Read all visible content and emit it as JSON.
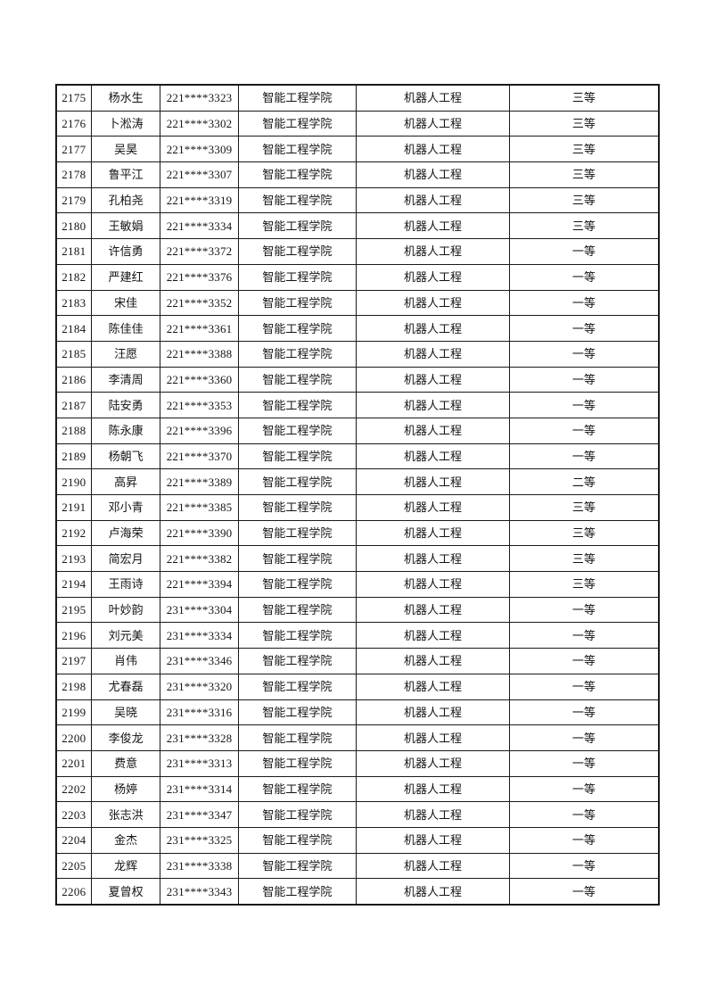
{
  "table": {
    "rows": [
      [
        "2175",
        "杨水生",
        "221****3323",
        "智能工程学院",
        "机器人工程",
        "三等"
      ],
      [
        "2176",
        "卜淞涛",
        "221****3302",
        "智能工程学院",
        "机器人工程",
        "三等"
      ],
      [
        "2177",
        "吴昊",
        "221****3309",
        "智能工程学院",
        "机器人工程",
        "三等"
      ],
      [
        "2178",
        "鲁平江",
        "221****3307",
        "智能工程学院",
        "机器人工程",
        "三等"
      ],
      [
        "2179",
        "孔柏尧",
        "221****3319",
        "智能工程学院",
        "机器人工程",
        "三等"
      ],
      [
        "2180",
        "王敏娟",
        "221****3334",
        "智能工程学院",
        "机器人工程",
        "三等"
      ],
      [
        "2181",
        "许信勇",
        "221****3372",
        "智能工程学院",
        "机器人工程",
        "一等"
      ],
      [
        "2182",
        "严建红",
        "221****3376",
        "智能工程学院",
        "机器人工程",
        "一等"
      ],
      [
        "2183",
        "宋佳",
        "221****3352",
        "智能工程学院",
        "机器人工程",
        "一等"
      ],
      [
        "2184",
        "陈佳佳",
        "221****3361",
        "智能工程学院",
        "机器人工程",
        "一等"
      ],
      [
        "2185",
        "汪愿",
        "221****3388",
        "智能工程学院",
        "机器人工程",
        "一等"
      ],
      [
        "2186",
        "李清周",
        "221****3360",
        "智能工程学院",
        "机器人工程",
        "一等"
      ],
      [
        "2187",
        "陆安勇",
        "221****3353",
        "智能工程学院",
        "机器人工程",
        "一等"
      ],
      [
        "2188",
        "陈永康",
        "221****3396",
        "智能工程学院",
        "机器人工程",
        "一等"
      ],
      [
        "2189",
        "杨朝飞",
        "221****3370",
        "智能工程学院",
        "机器人工程",
        "一等"
      ],
      [
        "2190",
        "高昇",
        "221****3389",
        "智能工程学院",
        "机器人工程",
        "二等"
      ],
      [
        "2191",
        "邓小青",
        "221****3385",
        "智能工程学院",
        "机器人工程",
        "三等"
      ],
      [
        "2192",
        "卢海荣",
        "221****3390",
        "智能工程学院",
        "机器人工程",
        "三等"
      ],
      [
        "2193",
        "简宏月",
        "221****3382",
        "智能工程学院",
        "机器人工程",
        "三等"
      ],
      [
        "2194",
        "王雨诗",
        "221****3394",
        "智能工程学院",
        "机器人工程",
        "三等"
      ],
      [
        "2195",
        "叶妙韵",
        "231****3304",
        "智能工程学院",
        "机器人工程",
        "一等"
      ],
      [
        "2196",
        "刘元美",
        "231****3334",
        "智能工程学院",
        "机器人工程",
        "一等"
      ],
      [
        "2197",
        "肖伟",
        "231****3346",
        "智能工程学院",
        "机器人工程",
        "一等"
      ],
      [
        "2198",
        "尤春磊",
        "231****3320",
        "智能工程学院",
        "机器人工程",
        "一等"
      ],
      [
        "2199",
        "吴晓",
        "231****3316",
        "智能工程学院",
        "机器人工程",
        "一等"
      ],
      [
        "2200",
        "李俊龙",
        "231****3328",
        "智能工程学院",
        "机器人工程",
        "一等"
      ],
      [
        "2201",
        "费意",
        "231****3313",
        "智能工程学院",
        "机器人工程",
        "一等"
      ],
      [
        "2202",
        "杨婷",
        "231****3314",
        "智能工程学院",
        "机器人工程",
        "一等"
      ],
      [
        "2203",
        "张志洪",
        "231****3347",
        "智能工程学院",
        "机器人工程",
        "一等"
      ],
      [
        "2204",
        "金杰",
        "231****3325",
        "智能工程学院",
        "机器人工程",
        "一等"
      ],
      [
        "2205",
        "龙辉",
        "231****3338",
        "智能工程学院",
        "机器人工程",
        "一等"
      ],
      [
        "2206",
        "夏曾权",
        "231****3343",
        "智能工程学院",
        "机器人工程",
        "一等"
      ]
    ]
  }
}
